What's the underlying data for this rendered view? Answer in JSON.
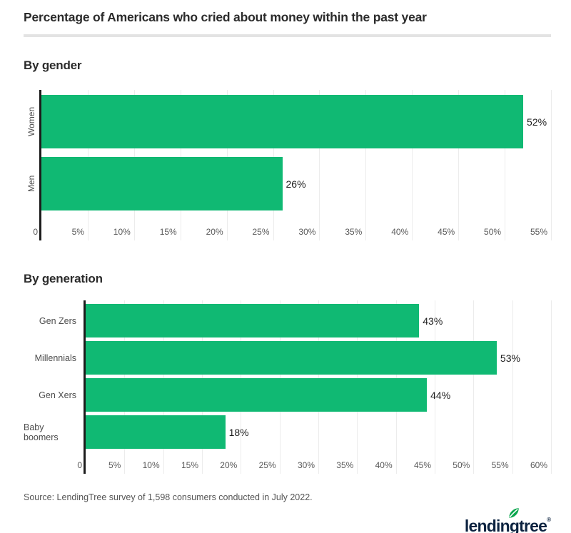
{
  "title": "Percentage of Americans who cried about money within the past year",
  "chart_data": [
    {
      "type": "bar",
      "orientation": "horizontal",
      "heading": "By gender",
      "categories": [
        "Women",
        "Men"
      ],
      "values": [
        52,
        26
      ],
      "value_labels": [
        "52%",
        "26%"
      ],
      "xlim": [
        0,
        55
      ],
      "tick_step": 5,
      "ticks": [
        "0",
        "5%",
        "10%",
        "15%",
        "20%",
        "25%",
        "30%",
        "35%",
        "40%",
        "45%",
        "50%",
        "55%"
      ],
      "grid": true,
      "bar_color": "#10b973",
      "category_label_style": "rotated"
    },
    {
      "type": "bar",
      "orientation": "horizontal",
      "heading": "By generation",
      "categories": [
        "Gen Zers",
        "Millennials",
        "Gen Xers",
        "Baby boomers"
      ],
      "values": [
        43,
        53,
        44,
        18
      ],
      "value_labels": [
        "43%",
        "53%",
        "44%",
        "18%"
      ],
      "xlim": [
        0,
        60
      ],
      "tick_step": 5,
      "ticks": [
        "0",
        "5%",
        "10%",
        "15%",
        "20%",
        "25%",
        "30%",
        "35%",
        "40%",
        "45%",
        "50%",
        "55%",
        "60%"
      ],
      "grid": true,
      "bar_color": "#10b973",
      "category_label_style": "horizontal"
    }
  ],
  "source": "Source: LendingTree survey of 1,598 consumers conducted in July 2022.",
  "logo": {
    "text": "lendingtree",
    "registered": "®",
    "icon": "leaf-icon",
    "text_color": "#0c2340",
    "leaf_color": "#0aa64e"
  },
  "colors": {
    "bar_green": "#10b973",
    "axis_line": "#1c1c1c",
    "gridline": "#ececec",
    "heading_text": "#2b2b2b",
    "tick_text": "#595959",
    "category_text": "#4d4d4d",
    "value_text": "#1d1d1d",
    "divider": "#e3e3e3"
  }
}
